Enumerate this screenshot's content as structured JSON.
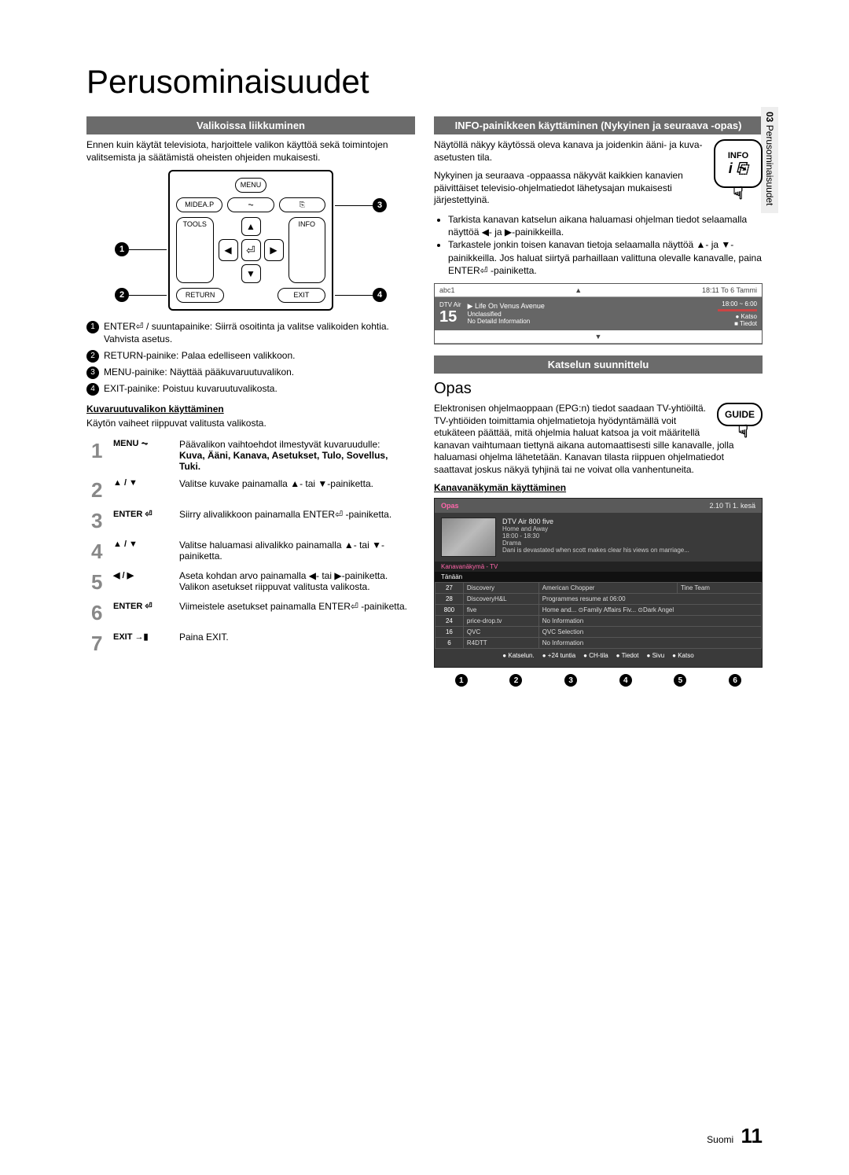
{
  "page": {
    "title": "Perusominaisuudet",
    "sideTabNum": "03",
    "sideTabText": "Perusominaisuudet",
    "footerLang": "Suomi",
    "footerPage": "11"
  },
  "left": {
    "bar1": "Valikoissa liikkuminen",
    "intro": "Ennen kuin käytät televisiota, harjoittele valikon käyttöä sekä toimintojen valitsemista ja säätämistä oheisten ohjeiden mukaisesti.",
    "remote": {
      "menu": "MENU",
      "mideap": "MIDEA.P",
      "tools": "TOOLS",
      "info": "INFO",
      "return": "RETURN",
      "exit": "EXIT"
    },
    "callouts": [
      "ENTER⏎ / suuntapainike: Siirrä osoitinta ja valitse valikoiden kohtia. Vahvista asetus.",
      "RETURN-painike: Palaa edelliseen valikkoon.",
      "MENU-painike: Näyttää pääkuvaruutuvalikon.",
      "EXIT-painike: Poistuu kuvaruutuvalikosta."
    ],
    "sub1": "Kuvaruutuvalikon käyttäminen",
    "sub1Intro": "Käytön vaiheet riippuvat valitusta valikosta.",
    "steps": [
      {
        "n": "1",
        "k": "MENU ⏦",
        "t": "Päävalikon vaihtoehdot ilmestyvät kuvaruudulle:",
        "b": "Kuva, Ääni, Kanava, Asetukset, Tulo, Sovellus, Tuki."
      },
      {
        "n": "2",
        "k": "▲ / ▼",
        "t": "Valitse kuvake painamalla ▲- tai ▼-painiketta."
      },
      {
        "n": "3",
        "k": "ENTER ⏎",
        "t": "Siirry alivalikkoon painamalla ENTER⏎ -painiketta."
      },
      {
        "n": "4",
        "k": "▲ / ▼",
        "t": "Valitse haluamasi alivalikko painamalla ▲- tai ▼-painiketta."
      },
      {
        "n": "5",
        "k": "◀ / ▶",
        "t": "Aseta kohdan arvo painamalla ◀- tai ▶-painiketta. Valikon asetukset riippuvat valitusta valikosta."
      },
      {
        "n": "6",
        "k": "ENTER ⏎",
        "t": "Viimeistele asetukset painamalla ENTER⏎ -painiketta."
      },
      {
        "n": "7",
        "k": "EXIT →▮",
        "t": "Paina EXIT."
      }
    ]
  },
  "right": {
    "bar1": "INFO-painikkeen käyttäminen (Nykyinen ja seuraava -opas)",
    "infoPara1": "Näytöllä näkyy käytössä oleva kanava ja joidenkin ääni- ja kuva-asetusten tila.",
    "infoPara2": "Nykyinen ja seuraava -oppaassa näkyvät kaikkien kanavien päivittäiset televisio-ohjelmatiedot lähetysajan mukaisesti järjestettyinä.",
    "infoBtn": "INFO",
    "bullets": [
      "Tarkista kanavan katselun aikana haluamasi ohjelman tiedot selaamalla näyttöä ◀- ja ▶-painikkeilla.",
      "Tarkastele jonkin toisen kanavan tietoja selaamalla näyttöä ▲- ja ▼-painikkeilla. Jos haluat siirtyä parhaillaan valittuna olevalle kanavalle, paina ENTER⏎ -painiketta."
    ],
    "osd": {
      "chName": "abc1",
      "time": "18:11 To 6 Tammi",
      "src": "DTV Air",
      "chNum": "15",
      "prog": "Life On Venus Avenue",
      "progTime": "18:00 ~ 6:00",
      "cls": "Unclassified",
      "det": "No Detaild Information",
      "rec": "● Katso",
      "txt": "■ Tiedot"
    },
    "bar2": "Katselun suunnittelu",
    "h2": "Opas",
    "opasText": "Elektronisen ohjelmaoppaan (EPG:n) tiedot saadaan TV-yhtiöiltä. TV-yhtiöiden toimittamia ohjelmatietoja hyödyntämällä voit etukäteen päättää, mitä ohjelmia haluat katsoa ja voit määritellä kanavan vaihtumaan tiettynä aikana automaattisesti sille kanavalle, jolla haluamasi ohjelma lähetetään. Kanavan tilasta riippuen ohjelmatiedot saattavat joskus näkyä tyhjinä tai ne voivat olla vanhentuneita.",
    "guideBtn": "GUIDE",
    "sub2": "Kanavanäkymän käyttäminen",
    "epg": {
      "title": "Opas",
      "date": "2.10 Ti 1. kesä",
      "featCh": "DTV Air 800 five",
      "featProg": "Home and Away",
      "featTime": "18:00 - 18:30",
      "featGenre": "Drama",
      "featDesc": "Dani is devastated when scott makes clear his views on marriage...",
      "view": "Kanavanäkymä - TV",
      "tab": "Tänään",
      "rows": [
        {
          "n": "27",
          "ch": "Discovery",
          "p1": "American Chopper",
          "p2": "Tine Team"
        },
        {
          "n": "28",
          "ch": "DiscoveryH&L",
          "p1": "Programmes resume at 06:00",
          "p2": ""
        },
        {
          "n": "800",
          "ch": "five",
          "p1": "Home and...   ⊙Family Affairs   Fiv...   ⊙Dark Angel",
          "p2": ""
        },
        {
          "n": "24",
          "ch": "price-drop.tv",
          "p1": "No Information",
          "p2": ""
        },
        {
          "n": "16",
          "ch": "QVC",
          "p1": "QVC Selection",
          "p2": ""
        },
        {
          "n": "6",
          "ch": "R4DTT",
          "p1": "No Information",
          "p2": ""
        }
      ],
      "legend": [
        "Katselun.",
        "+24 tuntia",
        "CH-tila",
        "Tiedot",
        "Sivu",
        "Katso"
      ]
    }
  }
}
